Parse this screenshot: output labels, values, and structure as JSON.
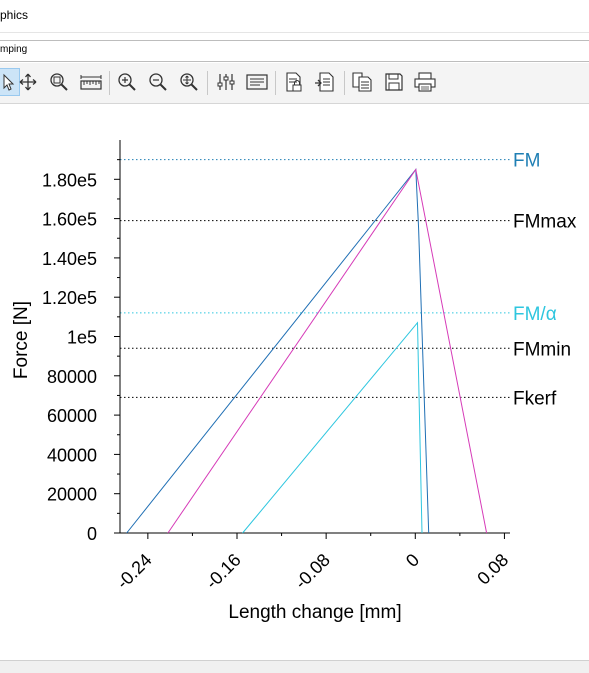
{
  "window": {
    "title": "phics"
  },
  "tab": {
    "label": "mping"
  },
  "toolbar": {
    "buttons": [
      {
        "name": "pointer-icon"
      },
      {
        "name": "pan-icon"
      },
      {
        "name": "zoom-box-icon"
      },
      {
        "name": "measure-icon"
      },
      {
        "name": "zoom-in-icon"
      },
      {
        "name": "zoom-out-icon"
      },
      {
        "name": "zoom-fit-icon"
      },
      {
        "name": "sliders-icon"
      },
      {
        "name": "legend-icon"
      },
      {
        "name": "report-lock-icon"
      },
      {
        "name": "report-export-icon"
      },
      {
        "name": "copy-icon"
      },
      {
        "name": "save-icon"
      },
      {
        "name": "print-icon"
      }
    ]
  },
  "colors": {
    "dark_blue": "#1f6fb4",
    "magenta": "#d63bb8",
    "cyan": "#2ec6df",
    "black": "#000000"
  },
  "chart_data": {
    "type": "line",
    "xlabel": "Length change [mm]",
    "ylabel": "Force [N]",
    "xlim": [
      -0.265,
      0.085
    ],
    "ylim": [
      0,
      200000
    ],
    "xticks": [
      -0.24,
      -0.16,
      -0.08,
      0,
      0.08
    ],
    "xtick_labels": [
      "-0.24",
      "-0.16",
      "-0.08",
      "0",
      "0.08"
    ],
    "yticks": [
      0,
      20000,
      40000,
      60000,
      80000,
      100000,
      120000,
      140000,
      160000,
      180000
    ],
    "ytick_labels": [
      "0",
      "20000",
      "40000",
      "60000",
      "80000",
      "1e5",
      "1.20e5",
      "1.40e5",
      "1.60e5",
      "1.80e5"
    ],
    "grid": false,
    "series": [
      {
        "color": "#1f6fb4",
        "x": [
          -0.259,
          0.0005,
          0.003,
          0.012
        ],
        "y": [
          0,
          185000,
          155000,
          0
        ]
      },
      {
        "color": "#d63bb8",
        "x": [
          -0.222,
          0.0005,
          0.064
        ],
        "y": [
          0,
          185000,
          0
        ]
      },
      {
        "color": "#2ec6df",
        "x": [
          -0.155,
          -0.001,
          0.002,
          0.003,
          0.006
        ],
        "y": [
          0,
          105000,
          107000,
          80000,
          0
        ]
      }
    ],
    "reference_lines": [
      {
        "label": "FM",
        "y": 190000,
        "color": "#1f7fb4"
      },
      {
        "label": "FMmax",
        "y": 159000,
        "color": "#000000"
      },
      {
        "label": "FM/α",
        "y": 112000,
        "color": "#2ec6df"
      },
      {
        "label": "FMmin",
        "y": 94000,
        "color": "#000000"
      },
      {
        "label": "Fkerf",
        "y": 69000,
        "color": "#000000"
      }
    ]
  }
}
